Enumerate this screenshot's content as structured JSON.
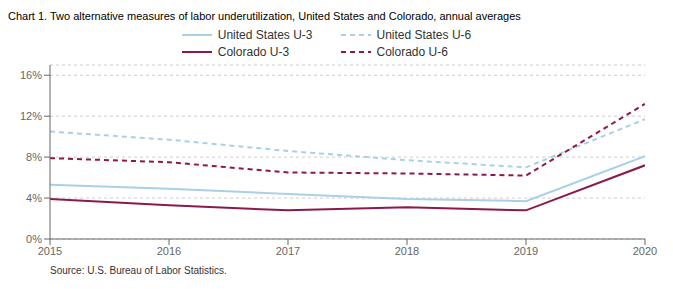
{
  "chart_data": {
    "type": "line",
    "title": "Chart 1. Two alternative measures of labor underutilization, United States and Colorado, annual averages",
    "annotations": [
      "Source: U.S. Bureau of Labor Statistics."
    ],
    "x": [
      2015,
      2016,
      2017,
      2018,
      2019,
      2020
    ],
    "series": [
      {
        "name": "United States U-3",
        "color": "#a8d0e8",
        "line_style": "solid",
        "values": [
          5.3,
          4.9,
          4.4,
          3.9,
          3.7,
          8.1
        ]
      },
      {
        "name": "United States U-6",
        "color": "#a8d0e8",
        "line_style": "dashed",
        "values": [
          10.5,
          9.7,
          8.6,
          7.7,
          7.0,
          11.7
        ]
      },
      {
        "name": "Colorado U-3",
        "color": "#8b1a4a",
        "line_style": "solid",
        "values": [
          3.9,
          3.3,
          2.8,
          3.1,
          2.8,
          7.2
        ]
      },
      {
        "name": "Colorado U-6",
        "color": "#8b1a4a",
        "line_style": "dashed",
        "values": [
          7.9,
          7.5,
          6.5,
          6.4,
          6.2,
          13.2
        ]
      }
    ],
    "xlim": [
      2015,
      2020
    ],
    "xticks": [
      2015,
      2016,
      2017,
      2018,
      2019,
      2020
    ],
    "ylim": [
      0,
      17
    ],
    "yticks": [
      {
        "value": 0,
        "label": "0%"
      },
      {
        "value": 4,
        "label": "4%"
      },
      {
        "value": 8,
        "label": "8%"
      },
      {
        "value": 12,
        "label": "12%"
      },
      {
        "value": 16,
        "label": "16%"
      }
    ],
    "grid": "y",
    "legend": "top"
  }
}
